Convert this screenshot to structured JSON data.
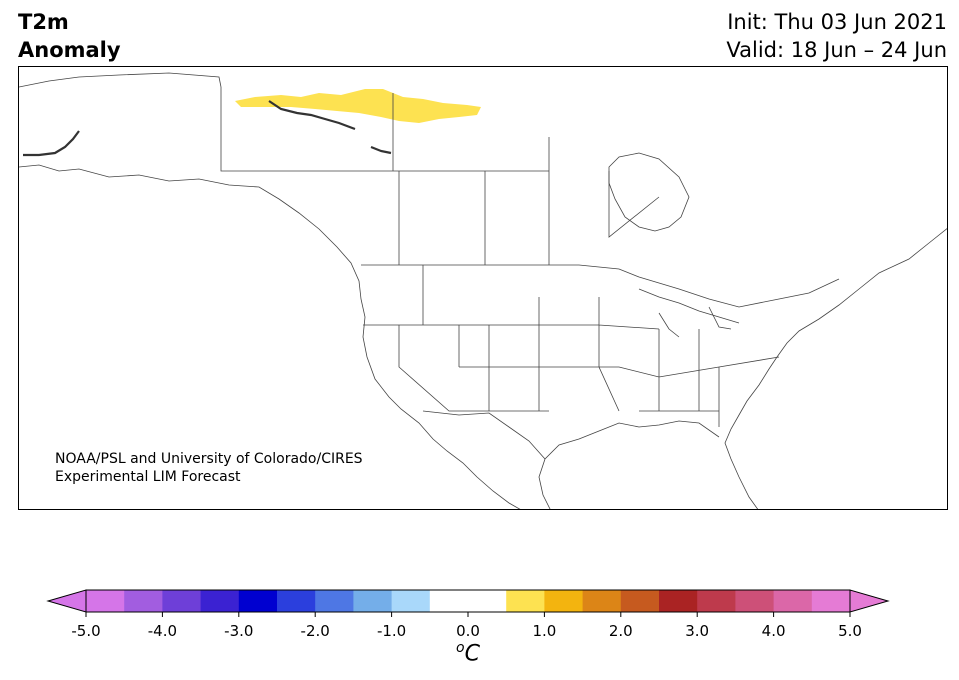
{
  "title": {
    "variable_line1": "T2m",
    "variable_line2": "Anomaly",
    "init": "Init: Thu 03 Jun 2021",
    "valid": "Valid: 18 Jun – 24 Jun"
  },
  "credit": {
    "line1": "NOAA/PSL and University of Colorado/CIRES",
    "line2": "Experimental LIM Forecast"
  },
  "colorbar": {
    "units_super": "o",
    "units_letter": "C",
    "ticks": [
      "-5.0",
      "-4.0",
      "-3.0",
      "-2.0",
      "-1.0",
      "0.0",
      "1.0",
      "2.0",
      "3.0",
      "4.0",
      "5.0"
    ],
    "colors": [
      "#d575e8",
      "#a25de0",
      "#6e3fd8",
      "#3b22d2",
      "#0000d0",
      "#2b3fdd",
      "#4e77e4",
      "#74aee9",
      "#a9d8fa",
      "#ffffff",
      "#ffffff",
      "#fde251",
      "#f3b40f",
      "#dc8517",
      "#c65a1f",
      "#aa2323",
      "#be3a4c",
      "#cd5078",
      "#db67a8",
      "#e57bd5"
    ],
    "under_color": "#d575e8",
    "over_color": "#e57bd5"
  },
  "map": {
    "region": "North America",
    "anomaly_areas": [
      {
        "name": "northern-canada-warm-anomaly",
        "category": "0.5 to 1.0",
        "color": "#fde251"
      }
    ],
    "land_color": "#ffffff",
    "boundary_color": "#444444"
  }
}
